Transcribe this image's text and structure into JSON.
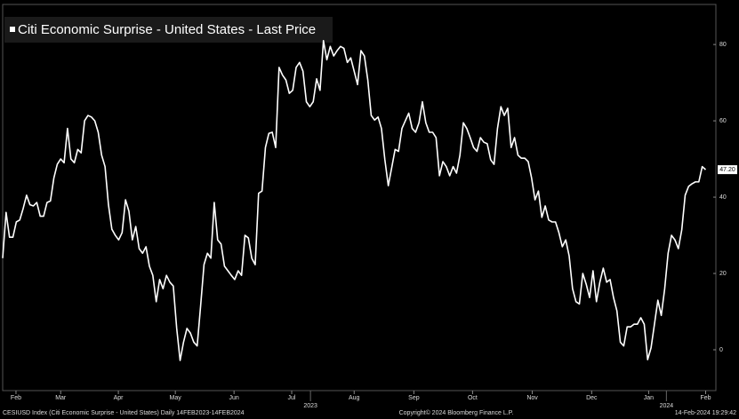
{
  "chart_data": {
    "type": "line",
    "title": "Citi Economic Surprise - United States - Last Price",
    "series": [
      {
        "name": "Citi Economic Surprise - United States - Last Price",
        "color": "#ffffff",
        "values": [
          24,
          36,
          29.5,
          29.5,
          33.5,
          34,
          37,
          40.5,
          38,
          37.7,
          38.6,
          35,
          35,
          38.6,
          39,
          45,
          48.6,
          50,
          49,
          58,
          50,
          49,
          52.5,
          51.6,
          60,
          61.4,
          61,
          60,
          57,
          51,
          48,
          38,
          31.6,
          30,
          28.8,
          30.7,
          39.3,
          36.3,
          28.8,
          32.3,
          26.5,
          25.3,
          27,
          21.9,
          19.5,
          12.6,
          18.4,
          16,
          19.5,
          17.7,
          16.7,
          5.6,
          -2.8,
          2,
          5.6,
          4.4,
          2,
          1,
          11.4,
          22.3,
          25.3,
          24,
          38.6,
          28.8,
          27.7,
          21.9,
          20.7,
          19.5,
          18.4,
          20.7,
          19.5,
          30,
          29.3,
          24,
          22.3,
          41,
          41.6,
          53,
          56.7,
          57,
          53,
          74,
          72,
          70.7,
          67.2,
          68,
          74,
          75.3,
          73,
          65,
          63.7,
          65,
          71,
          68,
          81,
          76,
          79.5,
          77,
          78.4,
          79.5,
          79,
          75.3,
          76.5,
          73,
          69.5,
          78.4,
          77,
          70.7,
          61.4,
          60.2,
          61,
          58,
          49.8,
          43,
          47.7,
          52.5,
          52,
          58,
          60,
          62,
          58,
          57,
          59.5,
          65,
          59.5,
          57,
          57,
          55.6,
          45.6,
          49.3,
          48,
          45.6,
          48,
          46.3,
          51,
          59.5,
          58,
          55.6,
          53,
          52,
          55.6,
          54.4,
          54,
          49.8,
          48.6,
          58,
          63.7,
          61.4,
          63.3,
          53,
          55.6,
          51,
          50.2,
          50.2,
          49.3,
          45,
          39.3,
          41.6,
          34.7,
          37.7,
          34,
          33.5,
          33.5,
          30.7,
          27,
          28.8,
          24.6,
          16,
          12.6,
          12,
          20,
          17.2,
          13.7,
          20.7,
          12.6,
          17.7,
          21.4,
          17.7,
          18.4,
          13.7,
          10.2,
          2,
          1,
          6,
          6,
          6.7,
          6.7,
          8.4,
          6.7,
          -2.6,
          0.5,
          6.7,
          13,
          9,
          16,
          25.3,
          30,
          28.8,
          26.5,
          31.4,
          40.5,
          42.8,
          43.5,
          44,
          44,
          48,
          47.2
        ],
        "last_value": 47.2,
        "last_value_label": "47.20"
      }
    ],
    "xlim": [
      0,
      209
    ],
    "xticks": [
      {
        "value": 3.9,
        "label": "Feb"
      },
      {
        "value": 17,
        "label": "Mar"
      },
      {
        "value": 33.9,
        "label": "Apr"
      },
      {
        "value": 50.6,
        "label": "May"
      },
      {
        "value": 67.8,
        "label": "Jun"
      },
      {
        "value": 84.7,
        "label": "Jul"
      },
      {
        "value": 103,
        "label": "Aug"
      },
      {
        "value": 120.5,
        "label": "Sep"
      },
      {
        "value": 137.7,
        "label": "Oct"
      },
      {
        "value": 155.2,
        "label": "Nov"
      },
      {
        "value": 172.6,
        "label": "Dec"
      },
      {
        "value": 189.3,
        "label": "Jan"
      },
      {
        "value": 206,
        "label": "Feb"
      }
    ],
    "year_ticks": [
      {
        "value": 90.2,
        "label": "2023"
      },
      {
        "value": 194.5,
        "label": "2024"
      }
    ],
    "ylim": [
      -10.7,
      90.5
    ],
    "yticks": [
      0,
      20,
      40,
      60,
      80
    ],
    "y_axis_side": "right",
    "grid": false,
    "footer": {
      "left": "CESIUSD Index (Citi Economic Surprise - United States)  Daily 14FEB2023-14FEB2024",
      "center": "Copyright© 2024 Bloomberg Finance L.P.",
      "right": "14-Feb-2024 19:29:42"
    }
  }
}
